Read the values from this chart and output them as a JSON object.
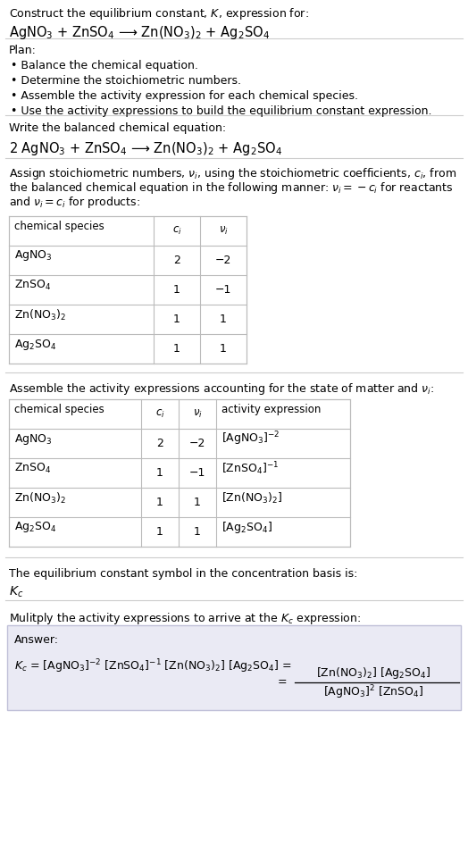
{
  "title_line1": "Construct the equilibrium constant, $K$, expression for:",
  "title_line2": "AgNO$_3$ + ZnSO$_4$ ⟶ Zn(NO$_3$)$_2$ + Ag$_2$SO$_4$",
  "plan_header": "Plan:",
  "plan_items": [
    "• Balance the chemical equation.",
    "• Determine the stoichiometric numbers.",
    "• Assemble the activity expression for each chemical species.",
    "• Use the activity expressions to build the equilibrium constant expression."
  ],
  "balanced_header": "Write the balanced chemical equation:",
  "balanced_eq": "2 AgNO$_3$ + ZnSO$_4$ ⟶ Zn(NO$_3$)$_2$ + Ag$_2$SO$_4$",
  "stoich_intro": "Assign stoichiometric numbers, $\\nu_i$, using the stoichiometric coefficients, $c_i$, from\nthe balanced chemical equation in the following manner: $\\nu_i = -c_i$ for reactants\nand $\\nu_i = c_i$ for products:",
  "table1_headers": [
    "chemical species",
    "$c_i$",
    "$\\nu_i$"
  ],
  "table1_rows": [
    [
      "AgNO$_3$",
      "2",
      "−2"
    ],
    [
      "ZnSO$_4$",
      "1",
      "−1"
    ],
    [
      "Zn(NO$_3$)$_2$",
      "1",
      "1"
    ],
    [
      "Ag$_2$SO$_4$",
      "1",
      "1"
    ]
  ],
  "activity_intro": "Assemble the activity expressions accounting for the state of matter and $\\nu_i$:",
  "table2_headers": [
    "chemical species",
    "$c_i$",
    "$\\nu_i$",
    "activity expression"
  ],
  "table2_rows": [
    [
      "AgNO$_3$",
      "2",
      "−2",
      "[AgNO$_3$]$^{-2}$"
    ],
    [
      "ZnSO$_4$",
      "1",
      "−1",
      "[ZnSO$_4$]$^{-1}$"
    ],
    [
      "Zn(NO$_3$)$_2$",
      "1",
      "1",
      "[Zn(NO$_3$)$_2$]"
    ],
    [
      "Ag$_2$SO$_4$",
      "1",
      "1",
      "[Ag$_2$SO$_4$]"
    ]
  ],
  "kc_intro": "The equilibrium constant symbol in the concentration basis is:",
  "kc_symbol": "$K_c$",
  "multiply_intro": "Mulitply the activity expressions to arrive at the $K_c$ expression:",
  "answer_label": "Answer:",
  "answer_line1": "$K_c$ = [AgNO$_3$]$^{-2}$ [ZnSO$_4$]$^{-1}$ [Zn(NO$_3$)$_2$] [Ag$_2$SO$_4$] =",
  "answer_frac_num": "[Zn(NO$_3$)$_2$] [Ag$_2$SO$_4$]",
  "answer_frac_den": "[AgNO$_3$]$^2$ [ZnSO$_4$]",
  "bg_color": "#ffffff",
  "text_color": "#000000",
  "table_border_color": "#bbbbbb",
  "answer_box_color": "#eaeaf4",
  "divider_color": "#cccccc"
}
